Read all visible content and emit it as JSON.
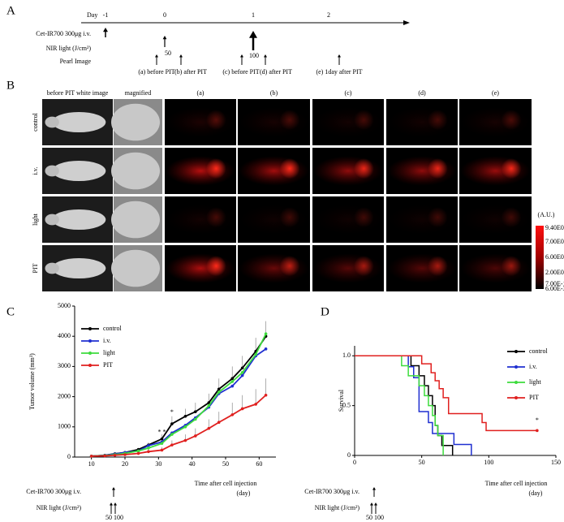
{
  "panel_a": {
    "label": "A",
    "day_label": "Day",
    "days": [
      "-1",
      "0",
      "1",
      "2"
    ],
    "rows": [
      "Cet-IR700 300μg i.v.",
      "NIR light (J/cm²)",
      "Pearl Image"
    ],
    "light_doses": [
      50,
      100
    ],
    "images": [
      "(a) before PIT",
      "(b) after PIT",
      "(c) before PIT",
      "(d) after PIT",
      "(e) 1day after PIT"
    ]
  },
  "panel_b": {
    "label": "B",
    "columns": [
      "before PIT white image",
      "magnified",
      "(a)",
      "(b)",
      "(c)",
      "(d)",
      "(e)"
    ],
    "rows": [
      "control",
      "i.v.",
      "light",
      "PIT"
    ],
    "colorbar": {
      "unit": "(A.U.)",
      "labels": [
        "9.40E0",
        "7.00E0",
        "6.00E0",
        "2.00E0",
        "7.00E-1",
        "6.00E-3"
      ]
    }
  },
  "chart_data": [
    {
      "type": "line",
      "panel_label": "C",
      "y_label": "Tumor volume (mm³)",
      "x_label": [
        "Time after cell injection",
        "(day)"
      ],
      "x": [
        10,
        14,
        17,
        20,
        24,
        27,
        31,
        34,
        38,
        41,
        45,
        48,
        52,
        55,
        59,
        62
      ],
      "xlim": [
        5,
        65
      ],
      "xticks": [
        10,
        20,
        30,
        40,
        50,
        60
      ],
      "ylim": [
        0,
        5000
      ],
      "yticks": [
        0,
        1000,
        2000,
        3000,
        4000,
        5000
      ],
      "legend": "upper left",
      "series": [
        {
          "name": "control",
          "color": "#000000",
          "values": [
            30,
            60,
            110,
            150,
            250,
            400,
            600,
            1100,
            1350,
            1500,
            1800,
            2250,
            2600,
            2950,
            3500,
            4000
          ],
          "errors": [
            10,
            15,
            20,
            30,
            50,
            80,
            150,
            250,
            250,
            300,
            300,
            350,
            400,
            400,
            450,
            500
          ]
        },
        {
          "name": "i.v.",
          "color": "#1f2fd0",
          "values": [
            30,
            60,
            100,
            150,
            200,
            380,
            500,
            800,
            1050,
            1300,
            1650,
            2100,
            2350,
            2700,
            3350,
            3580
          ]
        },
        {
          "name": "light",
          "color": "#3ddc3d",
          "values": [
            30,
            50,
            80,
            120,
            200,
            300,
            450,
            750,
            1000,
            1250,
            1700,
            2150,
            2500,
            2800,
            3400,
            4080
          ]
        },
        {
          "name": "PIT",
          "color": "#e0201f",
          "values": [
            30,
            40,
            60,
            80,
            120,
            180,
            230,
            400,
            550,
            700,
            950,
            1150,
            1400,
            1600,
            1750,
            2050
          ],
          "errors": [
            10,
            15,
            20,
            30,
            50,
            80,
            100,
            150,
            200,
            250,
            300,
            350,
            400,
            450,
            500,
            550
          ]
        }
      ],
      "annotations": [
        "* *",
        "*"
      ],
      "treatment": {
        "drug": "Cet-IR700 300μg i.v.",
        "light": "NIR light (J/cm²)",
        "doses": [
          50,
          100
        ]
      }
    },
    {
      "type": "step",
      "panel_label": "D",
      "y_label": "Survival",
      "x_label": [
        "Time after cell injection",
        "(day)"
      ],
      "xlim": [
        0,
        150
      ],
      "xticks": [
        0,
        50,
        100,
        150
      ],
      "ylim": [
        0,
        1.1
      ],
      "yticks": [
        0,
        0.5,
        {
          "value": 1,
          "label": "1.0"
        }
      ],
      "legend": "right",
      "series": [
        {
          "name": "control",
          "color": "#000000",
          "x": [
            0,
            42,
            48,
            52,
            55,
            58,
            60,
            62,
            65,
            73
          ],
          "values": [
            1,
            0.9,
            0.8,
            0.7,
            0.6,
            0.5,
            0.3,
            0.2,
            0.1,
            0
          ]
        },
        {
          "name": "i.v.",
          "color": "#1f2fd0",
          "x": [
            0,
            40,
            44,
            48,
            55,
            58,
            74,
            87
          ],
          "values": [
            1,
            0.89,
            0.78,
            0.44,
            0.33,
            0.22,
            0.11,
            0
          ]
        },
        {
          "name": "light",
          "color": "#3ddc3d",
          "x": [
            0,
            35,
            40,
            48,
            52,
            55,
            58,
            60,
            62,
            66
          ],
          "values": [
            1,
            0.9,
            0.8,
            0.7,
            0.6,
            0.5,
            0.4,
            0.3,
            0.2,
            0
          ]
        },
        {
          "name": "PIT",
          "color": "#e0201f",
          "x": [
            0,
            50,
            57,
            60,
            63,
            66,
            70,
            95,
            98,
            136
          ],
          "values": [
            1,
            0.92,
            0.83,
            0.75,
            0.67,
            0.58,
            0.42,
            0.33,
            0.25,
            0.25
          ]
        }
      ],
      "annotations": [
        "*"
      ],
      "treatment": {
        "drug": "Cet-IR700 300μg i.v.",
        "light": "NIR light (J/cm²)",
        "doses": [
          50,
          100
        ]
      }
    }
  ]
}
